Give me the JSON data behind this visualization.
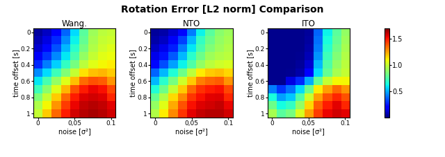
{
  "title": "Rotation Error [L2 norm] Comparison",
  "subtitles": [
    "Wang.",
    "NTO",
    "ITO"
  ],
  "xlabel": "noise [σ²]",
  "ylabel": "time offset [s]",
  "x_ticks": [
    0,
    0.05,
    0.1
  ],
  "x_tick_labels": [
    "0",
    "0,05",
    "0.1"
  ],
  "y_ticks": [
    0,
    0.2,
    0.4,
    0.6,
    0.8,
    1
  ],
  "y_tick_labels": [
    "0",
    "0.2",
    "0.4",
    "0.6",
    "0.8",
    "1"
  ],
  "vmin": 0,
  "vmax": 1.7,
  "colorbar_ticks": [
    0.5,
    1.0,
    1.5
  ],
  "wang_data": [
    [
      0.05,
      0.1,
      0.2,
      0.38,
      0.58,
      0.78,
      0.92,
      0.98,
      1.0
    ],
    [
      0.08,
      0.15,
      0.28,
      0.45,
      0.62,
      0.8,
      0.94,
      1.0,
      1.02
    ],
    [
      0.12,
      0.22,
      0.35,
      0.52,
      0.68,
      0.84,
      0.96,
      1.02,
      1.05
    ],
    [
      0.18,
      0.3,
      0.44,
      0.6,
      0.74,
      0.9,
      1.0,
      1.06,
      1.08
    ],
    [
      0.28,
      0.42,
      0.56,
      0.7,
      0.84,
      0.98,
      1.06,
      1.1,
      1.12
    ],
    [
      0.45,
      0.58,
      0.72,
      0.86,
      1.0,
      1.14,
      1.2,
      1.22,
      1.18
    ],
    [
      0.6,
      0.74,
      0.9,
      1.05,
      1.2,
      1.35,
      1.4,
      1.38,
      1.28
    ],
    [
      0.72,
      0.88,
      1.05,
      1.22,
      1.4,
      1.5,
      1.54,
      1.52,
      1.42
    ],
    [
      0.85,
      1.0,
      1.18,
      1.36,
      1.5,
      1.56,
      1.58,
      1.56,
      1.48
    ],
    [
      0.95,
      1.1,
      1.28,
      1.44,
      1.54,
      1.6,
      1.62,
      1.6,
      1.55
    ],
    [
      1.0,
      1.18,
      1.36,
      1.5,
      1.58,
      1.62,
      1.64,
      1.62,
      1.58
    ]
  ],
  "nto_data": [
    [
      0.04,
      0.06,
      0.12,
      0.22,
      0.42,
      0.62,
      0.78,
      0.88,
      0.92
    ],
    [
      0.06,
      0.1,
      0.18,
      0.32,
      0.52,
      0.7,
      0.82,
      0.9,
      0.94
    ],
    [
      0.1,
      0.16,
      0.26,
      0.42,
      0.6,
      0.74,
      0.86,
      0.92,
      0.96
    ],
    [
      0.16,
      0.24,
      0.36,
      0.52,
      0.68,
      0.82,
      0.92,
      0.96,
      0.98
    ],
    [
      0.22,
      0.34,
      0.48,
      0.62,
      0.76,
      0.9,
      0.98,
      1.02,
      1.04
    ],
    [
      0.38,
      0.52,
      0.66,
      0.82,
      0.98,
      1.12,
      1.18,
      1.2,
      1.16
    ],
    [
      0.52,
      0.68,
      0.84,
      1.02,
      1.18,
      1.32,
      1.36,
      1.38,
      1.28
    ],
    [
      0.66,
      0.82,
      1.0,
      1.18,
      1.36,
      1.46,
      1.5,
      1.52,
      1.42
    ],
    [
      0.8,
      0.96,
      1.15,
      1.3,
      1.45,
      1.52,
      1.55,
      1.56,
      1.48
    ],
    [
      0.9,
      1.06,
      1.24,
      1.4,
      1.52,
      1.56,
      1.58,
      1.6,
      1.54
    ],
    [
      0.96,
      1.12,
      1.3,
      1.45,
      1.55,
      1.6,
      1.62,
      1.62,
      1.58
    ]
  ],
  "ito_data": [
    [
      0.02,
      0.02,
      0.02,
      0.02,
      0.04,
      0.38,
      0.62,
      0.78,
      0.9
    ],
    [
      0.02,
      0.02,
      0.02,
      0.02,
      0.05,
      0.4,
      0.65,
      0.8,
      0.92
    ],
    [
      0.02,
      0.02,
      0.02,
      0.02,
      0.06,
      0.42,
      0.68,
      0.83,
      0.94
    ],
    [
      0.02,
      0.02,
      0.02,
      0.03,
      0.08,
      0.46,
      0.72,
      0.86,
      0.96
    ],
    [
      0.02,
      0.02,
      0.02,
      0.04,
      0.12,
      0.52,
      0.76,
      0.9,
      0.98
    ],
    [
      0.02,
      0.02,
      0.03,
      0.06,
      0.2,
      0.58,
      0.8,
      0.94,
      1.0
    ],
    [
      0.02,
      0.02,
      0.15,
      0.28,
      0.5,
      0.8,
      1.0,
      1.1,
      1.1
    ],
    [
      0.42,
      0.3,
      0.4,
      0.58,
      0.82,
      1.12,
      1.26,
      1.36,
      1.28
    ],
    [
      0.65,
      0.48,
      0.55,
      0.76,
      1.02,
      1.26,
      1.4,
      1.48,
      1.4
    ],
    [
      0.82,
      0.64,
      0.7,
      0.9,
      1.16,
      1.38,
      1.5,
      1.55,
      1.48
    ],
    [
      0.94,
      0.78,
      0.84,
      1.04,
      1.26,
      1.44,
      1.54,
      1.58,
      1.55
    ]
  ],
  "figsize": [
    6.4,
    2.27
  ],
  "dpi": 100
}
